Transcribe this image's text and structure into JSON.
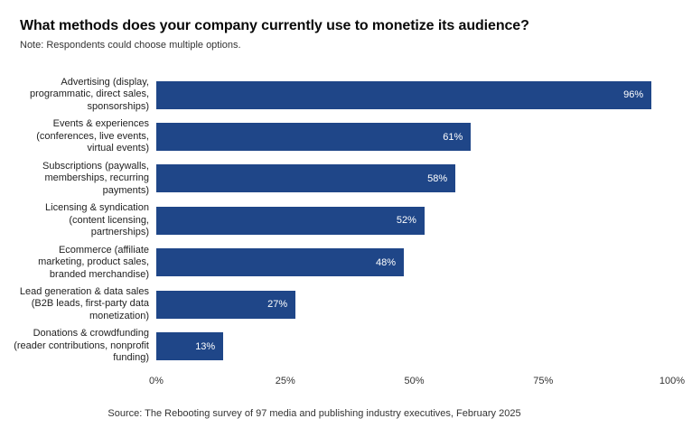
{
  "title": "What methods does your company currently use to monetize its audience?",
  "note": "Note: Respondents could choose multiple options.",
  "source": "Source: The Rebooting survey of 97 media and publishing industry executives, February 2025",
  "colors": {
    "bar": "#1f4688",
    "value_label": "#ffffff",
    "title_text": "#0a0a0a",
    "muted_text": "#333333"
  },
  "chart_data": {
    "type": "bar",
    "orientation": "horizontal",
    "title": "What methods does your company currently use to monetize its audience?",
    "subtitle": "Note: Respondents could choose multiple options.",
    "categories": [
      "Advertising (display,\nprogrammatic, direct sales,\nsponsorships)",
      "Events & experiences\n(conferences, live events,\nvirtual events)",
      "Subscriptions (paywalls,\nmemberships, recurring\npayments)",
      "Licensing & syndication\n(content licensing,\npartnerships)",
      "Ecommerce (affiliate\nmarketing, product sales,\nbranded merchandise)",
      "Lead generation & data sales\n(B2B leads, first-party data\nmonetization)",
      "Donations & crowdfunding\n(reader contributions, nonprofit\nfunding)"
    ],
    "values": [
      96,
      61,
      58,
      52,
      48,
      27,
      13
    ],
    "value_labels": [
      "96%",
      "61%",
      "58%",
      "52%",
      "48%",
      "27%",
      "13%"
    ],
    "xlabel": "",
    "ylabel": "",
    "xlim": [
      0,
      100
    ],
    "x_ticks": [
      {
        "value": 0,
        "label": "0%"
      },
      {
        "value": 25,
        "label": "25%"
      },
      {
        "value": 50,
        "label": "50%"
      },
      {
        "value": 75,
        "label": "75%"
      },
      {
        "value": 100,
        "label": "100%"
      }
    ],
    "grid": false,
    "legend": false,
    "value_label_position": "inside-end"
  }
}
